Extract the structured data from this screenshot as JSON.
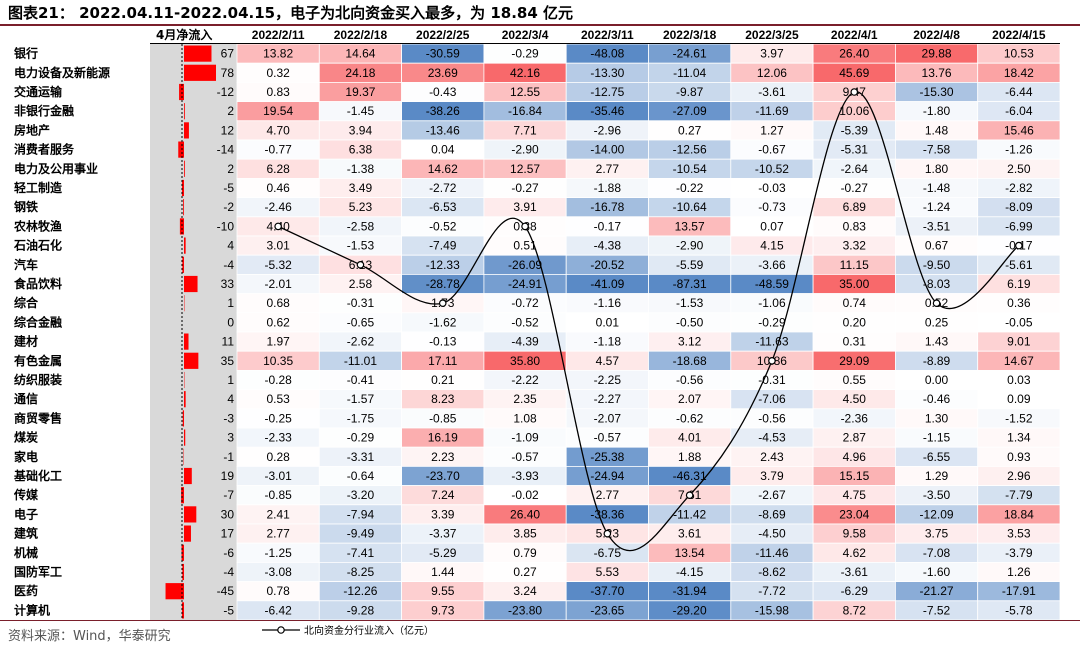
{
  "header": {
    "title": "图表21： 2022.04.11-2022.04.15，电子为北向资金买入最多，为 18.84 亿元"
  },
  "footer": {
    "source": "资料来源：Wind，华泰研究"
  },
  "chart_data": {
    "type": "heatmap",
    "net_inflow_label": "4月净流入",
    "columns": [
      "2022/2/11",
      "2022/2/18",
      "2022/2/25",
      "2022/3/4",
      "2022/3/11",
      "2022/3/18",
      "2022/3/25",
      "2022/4/1",
      "2022/4/8",
      "2022/4/15"
    ],
    "rows": [
      {
        "sector": "银行",
        "net": 67,
        "values": [
          13.82,
          14.64,
          -30.59,
          -0.29,
          -48.08,
          -24.61,
          3.97,
          26.4,
          29.88,
          10.53
        ]
      },
      {
        "sector": "电力设备及新能源",
        "net": 78,
        "values": [
          0.32,
          24.18,
          23.69,
          42.16,
          -13.3,
          -11.04,
          12.06,
          45.69,
          13.76,
          18.42
        ]
      },
      {
        "sector": "交通运输",
        "net": -12,
        "values": [
          0.83,
          19.37,
          -0.43,
          12.55,
          -12.75,
          -9.87,
          -3.61,
          9.47,
          -15.3,
          -6.44
        ]
      },
      {
        "sector": "非银行金融",
        "net": 2,
        "values": [
          19.54,
          -1.45,
          -38.26,
          -16.84,
          -35.46,
          -27.09,
          -11.69,
          10.06,
          -1.8,
          -6.04
        ]
      },
      {
        "sector": "房地产",
        "net": 12,
        "values": [
          4.7,
          3.94,
          -13.46,
          7.71,
          -2.96,
          0.27,
          1.27,
          -5.39,
          1.48,
          15.46
        ]
      },
      {
        "sector": "消费者服务",
        "net": -14,
        "values": [
          -0.77,
          6.38,
          0.04,
          -2.9,
          -14.0,
          -12.56,
          -0.67,
          -5.31,
          -7.58,
          -1.26
        ]
      },
      {
        "sector": "电力及公用事业",
        "net": 2,
        "values": [
          6.28,
          -1.38,
          14.62,
          12.57,
          2.77,
          -10.54,
          -10.52,
          -2.64,
          1.8,
          2.5
        ]
      },
      {
        "sector": "轻工制造",
        "net": -5,
        "values": [
          0.46,
          3.49,
          -2.72,
          -0.27,
          -1.88,
          -0.22,
          -0.03,
          -0.27,
          -1.48,
          -2.82
        ]
      },
      {
        "sector": "钢铁",
        "net": -2,
        "values": [
          -2.46,
          5.23,
          -6.53,
          3.91,
          -16.78,
          -10.64,
          -0.73,
          6.89,
          -1.24,
          -8.09
        ]
      },
      {
        "sector": "农林牧渔",
        "net": -10,
        "values": [
          4.4,
          -2.58,
          -0.52,
          0.38,
          -0.17,
          13.57,
          0.07,
          0.83,
          -3.51,
          -6.99
        ]
      },
      {
        "sector": "石油石化",
        "net": 4,
        "values": [
          3.01,
          -1.53,
          -7.49,
          0.51,
          -4.38,
          -2.9,
          4.15,
          3.32,
          0.67,
          -0.17
        ]
      },
      {
        "sector": "汽车",
        "net": -4,
        "values": [
          -5.32,
          6.13,
          -12.33,
          -26.09,
          -20.52,
          -5.59,
          -3.66,
          11.15,
          -9.5,
          -5.61
        ]
      },
      {
        "sector": "食品饮料",
        "net": 33,
        "values": [
          -2.01,
          2.58,
          -28.78,
          -24.91,
          -41.09,
          -87.31,
          -48.59,
          35.0,
          -8.03,
          6.19
        ]
      },
      {
        "sector": "综合",
        "net": 1,
        "values": [
          0.68,
          -0.31,
          1.73,
          -0.72,
          -1.16,
          -1.53,
          -1.06,
          0.74,
          0.52,
          0.36
        ]
      },
      {
        "sector": "综合金融",
        "net": 0,
        "values": [
          0.62,
          -0.65,
          -1.62,
          -0.52,
          0.01,
          -0.5,
          -0.29,
          0.2,
          0.25,
          -0.05
        ]
      },
      {
        "sector": "建材",
        "net": 11,
        "values": [
          1.97,
          -2.62,
          -0.13,
          -4.39,
          -1.18,
          3.12,
          -11.63,
          0.31,
          1.43,
          9.01
        ]
      },
      {
        "sector": "有色金属",
        "net": 35,
        "values": [
          10.35,
          -11.01,
          17.11,
          35.8,
          4.57,
          -18.68,
          10.86,
          29.09,
          -8.89,
          14.67
        ]
      },
      {
        "sector": "纺织服装",
        "net": 1,
        "values": [
          -0.28,
          -0.41,
          0.21,
          -2.22,
          -2.25,
          -0.56,
          -0.31,
          0.55,
          0.0,
          0.03
        ]
      },
      {
        "sector": "通信",
        "net": 4,
        "values": [
          0.53,
          -1.57,
          8.23,
          2.35,
          -2.27,
          2.07,
          -7.06,
          4.5,
          -0.46,
          0.09
        ]
      },
      {
        "sector": "商贸零售",
        "net": -3,
        "values": [
          -0.25,
          -1.75,
          -0.85,
          1.08,
          -2.07,
          -0.62,
          -0.56,
          -2.36,
          1.3,
          -1.52
        ]
      },
      {
        "sector": "煤炭",
        "net": 3,
        "values": [
          -2.33,
          -0.29,
          16.19,
          -1.09,
          -0.57,
          4.01,
          -4.53,
          2.87,
          -1.15,
          1.34
        ]
      },
      {
        "sector": "家电",
        "net": -1,
        "values": [
          0.28,
          -3.31,
          2.23,
          -0.57,
          -25.38,
          1.88,
          2.43,
          4.96,
          -6.55,
          0.93
        ]
      },
      {
        "sector": "基础化工",
        "net": 19,
        "values": [
          -3.01,
          -0.64,
          -23.7,
          -3.93,
          -24.94,
          -46.31,
          3.79,
          15.15,
          1.29,
          2.96
        ]
      },
      {
        "sector": "传媒",
        "net": -7,
        "values": [
          -0.85,
          -3.2,
          7.24,
          -0.02,
          2.77,
          7.61,
          -2.67,
          4.75,
          -3.5,
          -7.79
        ]
      },
      {
        "sector": "电子",
        "net": 30,
        "values": [
          2.41,
          -7.94,
          3.39,
          26.4,
          -38.36,
          -11.42,
          -8.69,
          23.04,
          -12.09,
          18.84
        ]
      },
      {
        "sector": "建筑",
        "net": 17,
        "values": [
          2.77,
          -9.49,
          -3.37,
          3.85,
          5.23,
          3.61,
          -4.5,
          9.58,
          3.75,
          3.53
        ]
      },
      {
        "sector": "机械",
        "net": -6,
        "values": [
          -1.25,
          -7.41,
          -5.29,
          0.79,
          -6.75,
          13.54,
          -11.46,
          4.62,
          -7.08,
          -3.79
        ]
      },
      {
        "sector": "国防军工",
        "net": -4,
        "values": [
          -3.08,
          -8.25,
          1.44,
          0.27,
          5.53,
          -4.15,
          -8.62,
          -3.61,
          -1.6,
          1.26
        ]
      },
      {
        "sector": "医药",
        "net": -45,
        "values": [
          0.78,
          -12.26,
          9.55,
          3.24,
          -37.7,
          -31.94,
          -7.72,
          -6.29,
          -21.27,
          -17.91
        ]
      },
      {
        "sector": "计算机",
        "net": -5,
        "values": [
          -6.42,
          -9.28,
          9.73,
          -23.8,
          -23.65,
          -29.2,
          -15.98,
          8.72,
          -7.52,
          -5.78
        ]
      }
    ],
    "line_series": {
      "name": "北向资金分行业流入（亿元）",
      "values": [
        4.4,
        6.13,
        1.73,
        0.38,
        5.23,
        7.61,
        10.86,
        9.47,
        0.52,
        -0.17
      ],
      "row_index": [
        9,
        11,
        13,
        9,
        25,
        23,
        16,
        2,
        13,
        10
      ],
      "color": "#000000"
    },
    "colors": {
      "positive": "#f8696b",
      "negative": "#5a8ac6",
      "neutral": "#ffffff",
      "net_bar": "#ff0000",
      "net_area": "#d9d9d9"
    },
    "color_scale_cap": 30
  }
}
